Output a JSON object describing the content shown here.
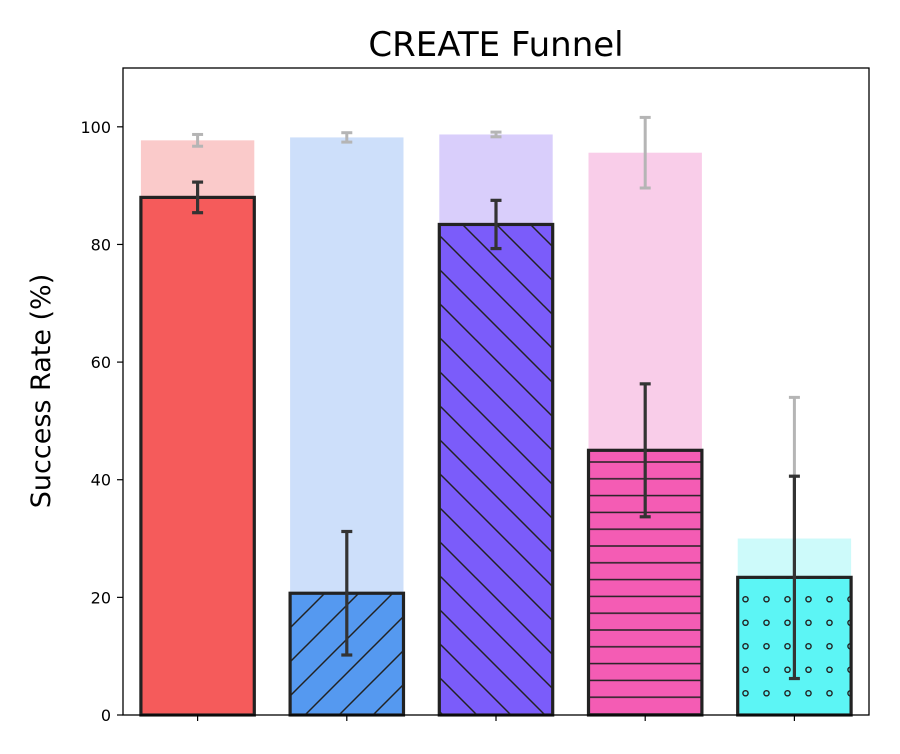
{
  "chart_data": {
    "type": "bar",
    "title": "CREATE Funnel",
    "xlabel": "",
    "ylabel": "Success Rate (%)",
    "ylim": [
      0,
      110
    ],
    "yticks": [
      0,
      20,
      40,
      60,
      80,
      100
    ],
    "grid": false,
    "legend": "none",
    "categories": [
      "",
      "",
      "",
      "",
      ""
    ],
    "series": [
      {
        "role": "background",
        "values": [
          97.7,
          98.2,
          98.7,
          95.6,
          30.0
        ],
        "errors": [
          1.0,
          0.8,
          0.4,
          6.0,
          24.0
        ]
      },
      {
        "role": "foreground",
        "values": [
          88.0,
          20.7,
          83.4,
          45.0,
          23.4
        ],
        "errors": [
          2.6,
          10.5,
          4.1,
          11.3,
          17.2
        ]
      }
    ],
    "colors": [
      "#f55b5b",
      "#5599f0",
      "#7b5cfa",
      "#f45cb4",
      "#5cf5f5"
    ],
    "light_colors": [
      "#facaca",
      "#cddffa",
      "#d9cefb",
      "#f9cde9",
      "#cdfafa"
    ],
    "hatches": [
      "none",
      "forward-diagonal",
      "back-diagonal",
      "horizontal",
      "dots"
    ]
  }
}
